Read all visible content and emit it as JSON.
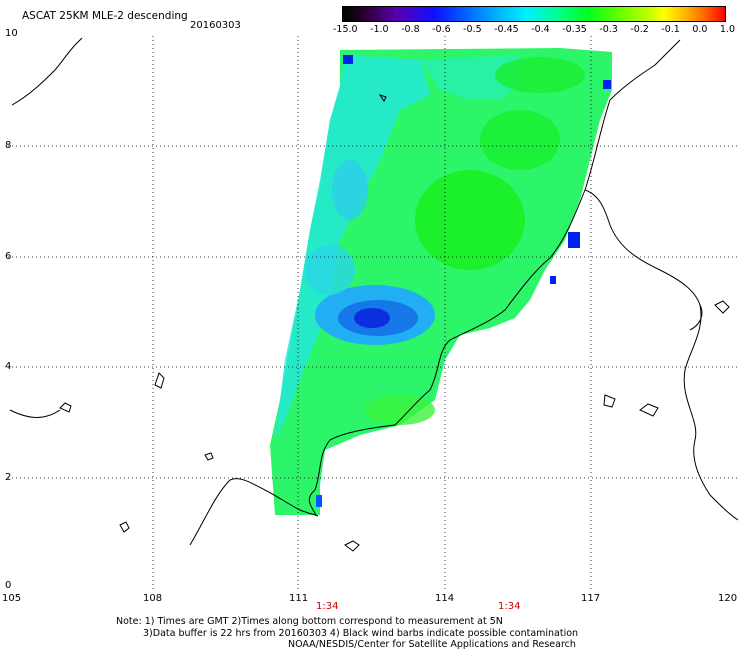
{
  "header": {
    "title": "ASCAT 25KM MLE-2 descending",
    "date": "20160303"
  },
  "colorbar": {
    "tick_labels": [
      "-15.0",
      "-1.0",
      "-0.8",
      "-0.6",
      "-0.5",
      "-0.45",
      "-0.4",
      "-0.35",
      "-0.3",
      "-0.2",
      "-0.1",
      "0.0",
      "1.0"
    ],
    "colors": [
      "#000000",
      "#1a0020",
      "#3a0070",
      "#5a00b0",
      "#0000ff",
      "#0055ff",
      "#00aaff",
      "#00eeff",
      "#00ffaa",
      "#00ff55",
      "#00ff00",
      "#55ff00",
      "#aaff00",
      "#ffff00",
      "#ffaa00",
      "#ff5500",
      "#ff0000"
    ]
  },
  "axes": {
    "y_ticks": [
      "10",
      "8",
      "6",
      "4",
      "2",
      "0"
    ],
    "x_ticks": [
      "105",
      "108",
      "111",
      "114",
      "117",
      "120"
    ],
    "time_labels": [
      "1:34",
      "1:34"
    ],
    "time_color": "#c00000"
  },
  "footer": {
    "line1": "Note: 1) Times are GMT 2)Times along bottom correspond to measurement at 5N",
    "line2": "3)Data buffer is 22 hrs from 20160303 4) Black wind barbs indicate possible contamination",
    "line3": "NOAA/NESDIS/Center for Satellite Applications and Research"
  },
  "map": {
    "lon_range": [
      105,
      120
    ],
    "lat_range": [
      0,
      10
    ],
    "land_color": "#ffffff",
    "coast_color": "#000000",
    "grid": "dotted"
  }
}
